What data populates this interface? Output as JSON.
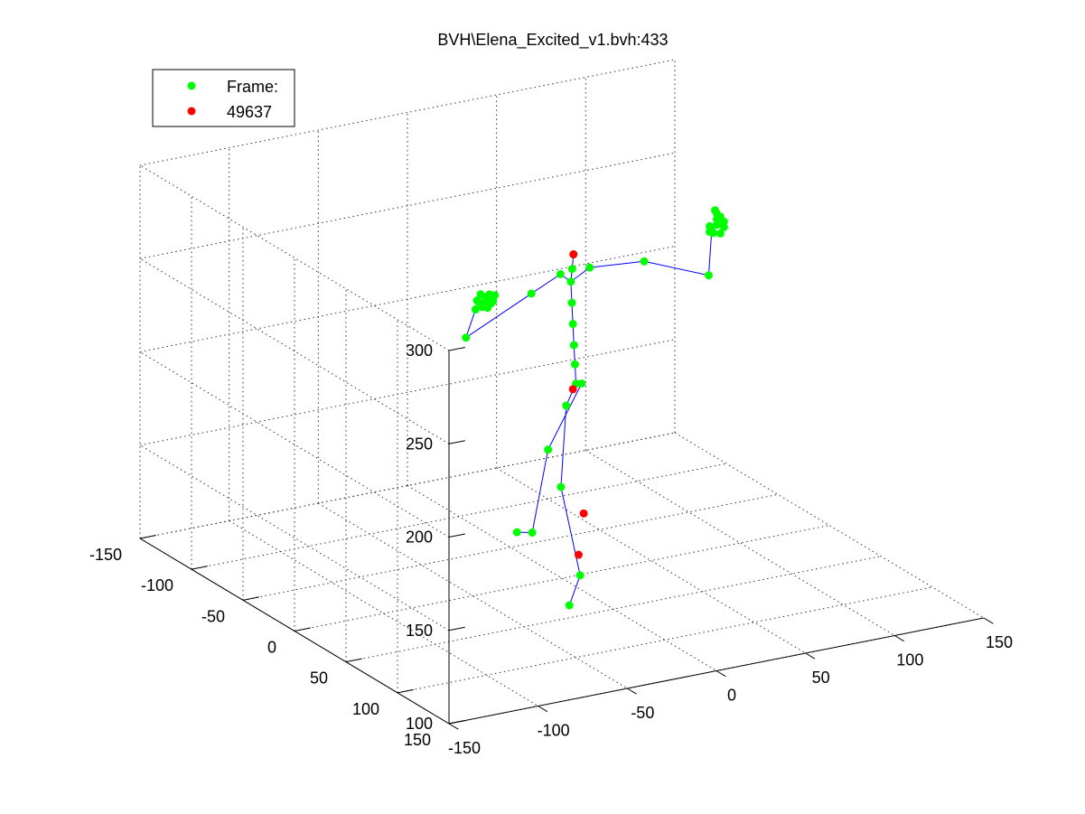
{
  "chart_data": {
    "type": "scatter",
    "projection": "3d",
    "title": "BVH\\Elena_Excited_v1.bvh:433",
    "xlim": [
      -150,
      150
    ],
    "ylim": [
      -150,
      150
    ],
    "zlim": [
      100,
      300
    ],
    "x_ticks": [
      "-150",
      "-100",
      "-50",
      "0",
      "50",
      "100",
      "150"
    ],
    "y_ticks": [
      "150",
      "100",
      "50",
      "0",
      "-50",
      "-100",
      "-150"
    ],
    "z_ticks": [
      "100",
      "150",
      "200",
      "250",
      "300"
    ],
    "grid": true,
    "legend": {
      "placement": "top-left",
      "entries": [
        {
          "label": "Frame:",
          "color": "#00ff00"
        },
        {
          "label": "49637",
          "color": "#ff0000"
        }
      ]
    },
    "colors": {
      "joint": "#00ff00",
      "marker": "#ff0000",
      "bone": "#0000ff",
      "grid": "#333333"
    },
    "skeleton": {
      "joint_names": [
        "hips",
        "spine1",
        "spine2",
        "spine3",
        "spine4",
        "chest",
        "neck",
        "head",
        "r_clavicle",
        "r_shoulder",
        "r_elbow",
        "r_wrist",
        "r_hand",
        "l_clavicle",
        "l_shoulder",
        "l_elbow",
        "l_wrist",
        "l_hand",
        "r_hip",
        "r_knee",
        "r_ankle",
        "r_toe",
        "l_hip",
        "l_knee",
        "l_ankle",
        "l_toe"
      ],
      "joints": [
        [
          5,
          5,
          205
        ],
        [
          5,
          4,
          215
        ],
        [
          5,
          3,
          225
        ],
        [
          5,
          2,
          236
        ],
        [
          5,
          1,
          247
        ],
        [
          5,
          0,
          258
        ],
        [
          4,
          3,
          266
        ],
        [
          3,
          6,
          275
        ],
        [
          -2,
          2,
          264
        ],
        [
          -20,
          5,
          258
        ],
        [
          -55,
          2,
          240
        ],
        [
          -60,
          20,
          262
        ],
        [
          -60,
          30,
          270
        ],
        [
          15,
          1,
          264
        ],
        [
          45,
          2,
          262
        ],
        [
          65,
          30,
          260
        ],
        [
          58,
          45,
          290
        ],
        [
          58,
          50,
          295
        ],
        [
          -8,
          18,
          200
        ],
        [
          -15,
          25,
          160
        ],
        [
          -10,
          35,
          115
        ],
        [
          -12,
          28,
          97
        ],
        [
          18,
          -12,
          197
        ],
        [
          -2,
          -10,
          166
        ],
        [
          -8,
          -15,
          121
        ],
        [
          -5,
          -35,
          114
        ]
      ],
      "bones": [
        [
          0,
          1
        ],
        [
          1,
          2
        ],
        [
          2,
          3
        ],
        [
          3,
          4
        ],
        [
          4,
          5
        ],
        [
          5,
          6
        ],
        [
          6,
          7
        ],
        [
          5,
          8
        ],
        [
          8,
          9
        ],
        [
          9,
          10
        ],
        [
          10,
          11
        ],
        [
          11,
          12
        ],
        [
          5,
          13
        ],
        [
          13,
          14
        ],
        [
          14,
          15
        ],
        [
          15,
          16
        ],
        [
          16,
          17
        ],
        [
          0,
          18
        ],
        [
          18,
          19
        ],
        [
          19,
          20
        ],
        [
          20,
          21
        ],
        [
          0,
          22
        ],
        [
          22,
          23
        ],
        [
          23,
          24
        ],
        [
          24,
          25
        ]
      ],
      "red_markers": [
        [
          3,
          6,
          275
        ],
        [
          5,
          2,
          201
        ],
        [
          -8,
          30,
          124
        ],
        [
          18,
          -10,
          128
        ]
      ],
      "hand_clusters": [
        {
          "center": [
            -60,
            30,
            270
          ],
          "points": [
            [
              -4,
              0,
              0
            ],
            [
              0,
              0,
              2
            ],
            [
              4,
              0,
              -1
            ],
            [
              -2,
              0,
              -3
            ],
            [
              2,
              0,
              3
            ],
            [
              -5,
              0,
              1
            ],
            [
              1,
              0,
              -4
            ],
            [
              5,
              0,
              2
            ],
            [
              -3,
              0,
              4
            ],
            [
              3,
              0,
              -2
            ]
          ]
        },
        {
          "center": [
            58,
            50,
            295
          ],
          "points": [
            [
              -4,
              0,
              0
            ],
            [
              0,
              0,
              3
            ],
            [
              4,
              0,
              -2
            ],
            [
              -2,
              0,
              -4
            ],
            [
              2,
              0,
              4
            ],
            [
              0,
              0,
              6
            ],
            [
              -1,
              0,
              8
            ],
            [
              2,
              0,
              -5
            ],
            [
              -4,
              0,
              -3
            ],
            [
              4,
              0,
              1
            ]
          ]
        }
      ]
    }
  }
}
